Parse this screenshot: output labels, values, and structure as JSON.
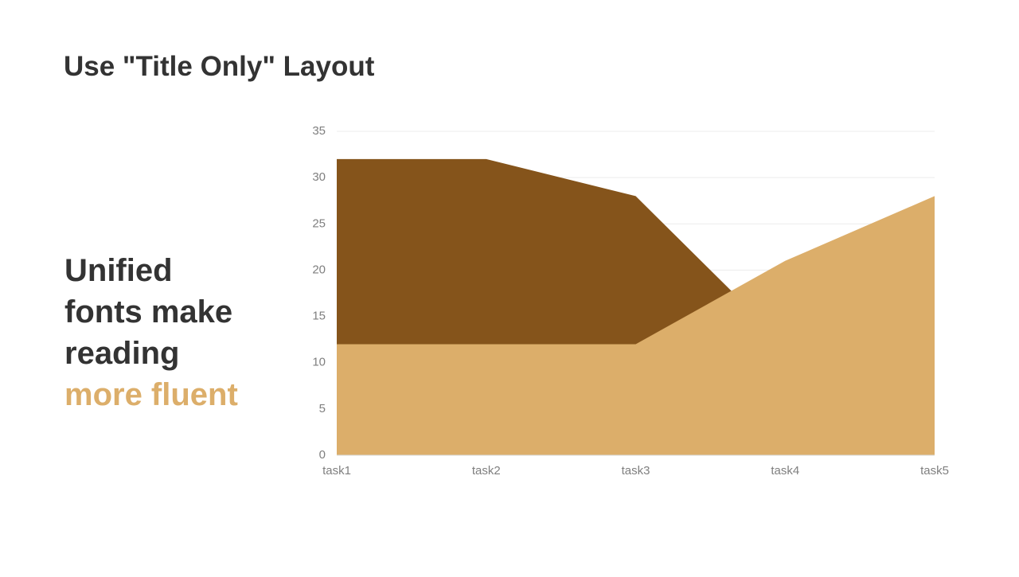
{
  "slide": {
    "title": "Use \"Title Only\" Layout",
    "body_lines": [
      "Unified",
      "fonts make",
      "reading"
    ],
    "highlight": "more fluent",
    "highlight_color": "#dcae6a"
  },
  "chart_data": {
    "type": "area",
    "categories": [
      "task1",
      "task2",
      "task3",
      "task4",
      "task5"
    ],
    "series": [
      {
        "color": "#85541b",
        "values": [
          32,
          32,
          28,
          12,
          8
        ]
      },
      {
        "color": "#dcae6a",
        "values": [
          12,
          12,
          12,
          21,
          28
        ]
      }
    ],
    "ylim": [
      0,
      35
    ],
    "yticks": [
      0,
      5,
      10,
      15,
      20,
      25,
      30,
      35
    ],
    "grid": true
  }
}
